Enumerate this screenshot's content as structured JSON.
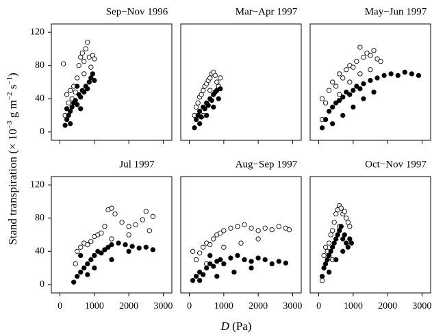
{
  "axis_labels": {
    "y": [
      "Stand transpiration (× 10",
      "−3",
      " g m",
      "−2",
      " s",
      "−1",
      ")"
    ],
    "x": [
      "D",
      " (Pa)"
    ]
  },
  "chart_data": [
    {
      "type": "scatter",
      "title": "Sep−Nov 1996",
      "xlim": [
        -250,
        3250
      ],
      "ylim": [
        -10,
        130
      ],
      "xticks": [
        0,
        1000,
        2000,
        3000
      ],
      "yticks": [
        0,
        40,
        80,
        120
      ],
      "series": [
        {
          "color": "#000000",
          "marker": "open",
          "x": [
            100,
            200,
            300,
            400,
            500,
            550,
            600,
            650,
            700,
            750,
            800,
            850,
            900,
            950,
            1000,
            450,
            350,
            250,
            150,
            700
          ],
          "y": [
            82,
            45,
            50,
            55,
            65,
            80,
            90,
            95,
            85,
            100,
            108,
            90,
            78,
            92,
            88,
            48,
            40,
            35,
            20,
            70
          ]
        },
        {
          "color": "#000000",
          "marker": "filled",
          "x": [
            150,
            200,
            250,
            300,
            350,
            400,
            450,
            500,
            550,
            600,
            650,
            700,
            750,
            800,
            850,
            900,
            950,
            1000,
            300,
            200,
            500,
            600
          ],
          "y": [
            8,
            15,
            20,
            25,
            30,
            35,
            38,
            33,
            45,
            42,
            50,
            48,
            55,
            52,
            60,
            65,
            70,
            62,
            10,
            28,
            55,
            28
          ]
        }
      ]
    },
    {
      "type": "scatter",
      "title": "Mar−Apr 1997",
      "xlim": [
        -250,
        3250
      ],
      "ylim": [
        -10,
        130
      ],
      "xticks": [
        0,
        1000,
        2000,
        3000
      ],
      "series": [
        {
          "color": "#000000",
          "marker": "open",
          "x": [
            150,
            200,
            250,
            300,
            350,
            400,
            450,
            500,
            550,
            600,
            650,
            700,
            750,
            800,
            850,
            900,
            400,
            600
          ],
          "y": [
            20,
            30,
            35,
            42,
            45,
            50,
            55,
            58,
            62,
            65,
            70,
            72,
            68,
            60,
            55,
            65,
            20,
            50
          ]
        },
        {
          "color": "#000000",
          "marker": "filled",
          "x": [
            150,
            200,
            250,
            300,
            350,
            400,
            450,
            500,
            550,
            600,
            650,
            700,
            750,
            800,
            850,
            900,
            300,
            500,
            700
          ],
          "y": [
            5,
            15,
            20,
            25,
            18,
            30,
            28,
            35,
            32,
            40,
            38,
            45,
            48,
            50,
            40,
            52,
            10,
            20,
            30
          ]
        }
      ]
    },
    {
      "type": "scatter",
      "title": "May−Jun 1997",
      "xlim": [
        -250,
        3250
      ],
      "ylim": [
        -10,
        130
      ],
      "xticks": [
        0,
        1000,
        2000,
        3000
      ],
      "series": [
        {
          "color": "#000000",
          "marker": "open",
          "x": [
            100,
            200,
            300,
            400,
            500,
            600,
            700,
            800,
            900,
            1000,
            1100,
            1200,
            1300,
            1400,
            1500,
            1600,
            1700,
            1800,
            600,
            900,
            1200,
            1500,
            100
          ],
          "y": [
            40,
            35,
            50,
            60,
            55,
            70,
            65,
            75,
            80,
            78,
            85,
            102,
            90,
            95,
            92,
            98,
            88,
            85,
            45,
            60,
            70,
            75,
            15
          ]
        },
        {
          "color": "#000000",
          "marker": "filled",
          "x": [
            100,
            200,
            300,
            400,
            500,
            600,
            700,
            800,
            900,
            1000,
            1100,
            1200,
            1300,
            1500,
            1700,
            1900,
            2100,
            2300,
            2500,
            2700,
            2900,
            400,
            700,
            1000,
            1300,
            1600
          ],
          "y": [
            5,
            15,
            25,
            30,
            35,
            38,
            42,
            48,
            45,
            50,
            55,
            52,
            58,
            62,
            65,
            68,
            70,
            68,
            72,
            70,
            68,
            10,
            20,
            30,
            40,
            48
          ]
        }
      ]
    },
    {
      "type": "scatter",
      "title": "Jul 1997",
      "xlim": [
        -250,
        3250
      ],
      "ylim": [
        -10,
        130
      ],
      "xticks": [
        0,
        1000,
        2000,
        3000
      ],
      "yticks": [
        0,
        40,
        80,
        120
      ],
      "series": [
        {
          "color": "#000000",
          "marker": "open",
          "x": [
            450,
            500,
            600,
            700,
            800,
            900,
            1000,
            1100,
            1200,
            1300,
            1400,
            1500,
            1600,
            1800,
            2000,
            2200,
            2400,
            2500,
            2700,
            1500,
            2000,
            2600
          ],
          "y": [
            25,
            40,
            45,
            50,
            48,
            52,
            58,
            60,
            62,
            70,
            90,
            92,
            85,
            75,
            70,
            72,
            78,
            88,
            82,
            55,
            60,
            65
          ]
        },
        {
          "color": "#000000",
          "marker": "filled",
          "x": [
            400,
            500,
            600,
            700,
            800,
            900,
            1000,
            1100,
            1200,
            1300,
            1400,
            1500,
            1700,
            1900,
            2100,
            2300,
            2500,
            2700,
            800,
            1000,
            1500,
            2000,
            600
          ],
          "y": [
            3,
            10,
            15,
            20,
            25,
            30,
            35,
            40,
            38,
            42,
            45,
            48,
            50,
            48,
            46,
            44,
            45,
            42,
            12,
            20,
            30,
            40,
            35
          ]
        }
      ]
    },
    {
      "type": "scatter",
      "title": "Aug−Sep 1997",
      "xlim": [
        -250,
        3250
      ],
      "ylim": [
        -10,
        130
      ],
      "xticks": [
        0,
        1000,
        2000,
        3000
      ],
      "series": [
        {
          "color": "#000000",
          "marker": "open",
          "x": [
            100,
            200,
            300,
            400,
            500,
            600,
            700,
            800,
            900,
            1000,
            1200,
            1400,
            1600,
            1800,
            2000,
            2200,
            2400,
            2600,
            2800,
            2900,
            500,
            1000,
            1500,
            2000
          ],
          "y": [
            40,
            30,
            38,
            45,
            50,
            48,
            55,
            60,
            62,
            65,
            68,
            70,
            72,
            68,
            65,
            68,
            66,
            70,
            68,
            66,
            25,
            45,
            50,
            55
          ]
        },
        {
          "color": "#000000",
          "marker": "filled",
          "x": [
            100,
            200,
            300,
            400,
            500,
            600,
            700,
            800,
            900,
            1000,
            1200,
            1400,
            1600,
            1800,
            2000,
            2200,
            2400,
            2600,
            2800,
            300,
            800,
            1300,
            1800,
            600
          ],
          "y": [
            5,
            10,
            15,
            12,
            20,
            25,
            22,
            28,
            30,
            25,
            32,
            35,
            30,
            28,
            32,
            30,
            25,
            28,
            26,
            5,
            10,
            15,
            20,
            35
          ]
        }
      ]
    },
    {
      "type": "scatter",
      "title": "Oct−Nov 1997",
      "xlim": [
        -250,
        3250
      ],
      "ylim": [
        -10,
        130
      ],
      "xticks": [
        0,
        1000,
        2000,
        3000
      ],
      "series": [
        {
          "color": "#000000",
          "marker": "open",
          "x": [
            100,
            150,
            200,
            250,
            300,
            350,
            400,
            450,
            500,
            550,
            600,
            650,
            700,
            750,
            800,
            850,
            900,
            400,
            600
          ],
          "y": [
            5,
            35,
            45,
            40,
            50,
            60,
            65,
            75,
            85,
            90,
            95,
            92,
            85,
            88,
            80,
            75,
            70,
            30,
            70
          ]
        },
        {
          "color": "#000000",
          "marker": "filled",
          "x": [
            100,
            150,
            200,
            250,
            300,
            350,
            400,
            450,
            500,
            550,
            600,
            650,
            700,
            750,
            800,
            850,
            900,
            950,
            300,
            500,
            700
          ],
          "y": [
            10,
            20,
            25,
            30,
            35,
            40,
            45,
            50,
            55,
            60,
            65,
            70,
            55,
            60,
            50,
            45,
            55,
            50,
            15,
            30,
            40
          ]
        }
      ]
    }
  ]
}
